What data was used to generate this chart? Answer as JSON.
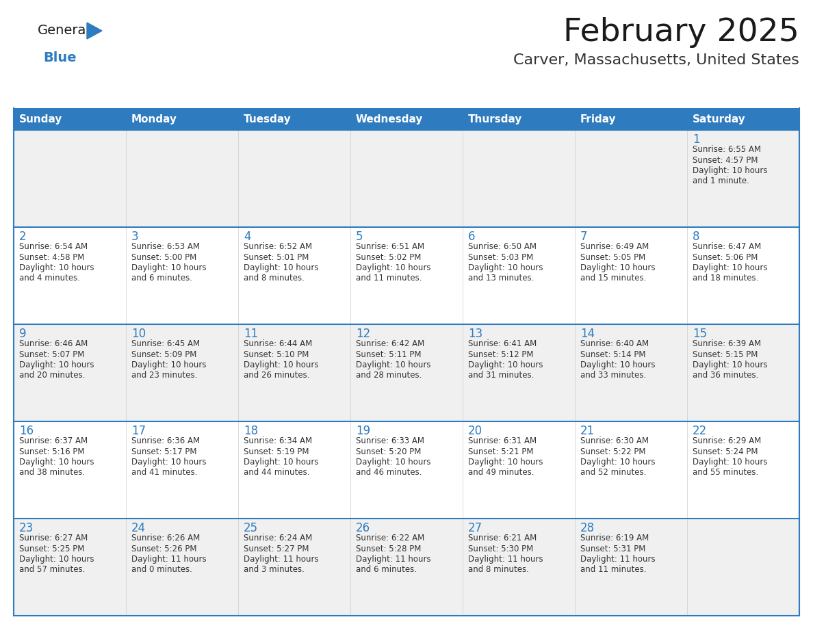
{
  "title": "February 2025",
  "subtitle": "Carver, Massachusetts, United States",
  "days_of_week": [
    "Sunday",
    "Monday",
    "Tuesday",
    "Wednesday",
    "Thursday",
    "Friday",
    "Saturday"
  ],
  "header_bg": "#2E7BBF",
  "header_text_color": "#FFFFFF",
  "cell_bg_odd": "#F0F0F0",
  "cell_bg_even": "#FFFFFF",
  "border_color": "#2E7BBF",
  "row_sep_color": "#2E7BBF",
  "day_num_color": "#2E7BBF",
  "cell_text_color": "#333333",
  "title_color": "#1a1a1a",
  "subtitle_color": "#333333",
  "logo_general_color": "#1a1a1a",
  "logo_blue_color": "#2E7BBF",
  "calendar_data": [
    [
      null,
      null,
      null,
      null,
      null,
      null,
      {
        "day": 1,
        "sunrise": "6:55 AM",
        "sunset": "4:57 PM",
        "daylight": "10 hours and 1 minute."
      }
    ],
    [
      {
        "day": 2,
        "sunrise": "6:54 AM",
        "sunset": "4:58 PM",
        "daylight": "10 hours and 4 minutes."
      },
      {
        "day": 3,
        "sunrise": "6:53 AM",
        "sunset": "5:00 PM",
        "daylight": "10 hours and 6 minutes."
      },
      {
        "day": 4,
        "sunrise": "6:52 AM",
        "sunset": "5:01 PM",
        "daylight": "10 hours and 8 minutes."
      },
      {
        "day": 5,
        "sunrise": "6:51 AM",
        "sunset": "5:02 PM",
        "daylight": "10 hours and 11 minutes."
      },
      {
        "day": 6,
        "sunrise": "6:50 AM",
        "sunset": "5:03 PM",
        "daylight": "10 hours and 13 minutes."
      },
      {
        "day": 7,
        "sunrise": "6:49 AM",
        "sunset": "5:05 PM",
        "daylight": "10 hours and 15 minutes."
      },
      {
        "day": 8,
        "sunrise": "6:47 AM",
        "sunset": "5:06 PM",
        "daylight": "10 hours and 18 minutes."
      }
    ],
    [
      {
        "day": 9,
        "sunrise": "6:46 AM",
        "sunset": "5:07 PM",
        "daylight": "10 hours and 20 minutes."
      },
      {
        "day": 10,
        "sunrise": "6:45 AM",
        "sunset": "5:09 PM",
        "daylight": "10 hours and 23 minutes."
      },
      {
        "day": 11,
        "sunrise": "6:44 AM",
        "sunset": "5:10 PM",
        "daylight": "10 hours and 26 minutes."
      },
      {
        "day": 12,
        "sunrise": "6:42 AM",
        "sunset": "5:11 PM",
        "daylight": "10 hours and 28 minutes."
      },
      {
        "day": 13,
        "sunrise": "6:41 AM",
        "sunset": "5:12 PM",
        "daylight": "10 hours and 31 minutes."
      },
      {
        "day": 14,
        "sunrise": "6:40 AM",
        "sunset": "5:14 PM",
        "daylight": "10 hours and 33 minutes."
      },
      {
        "day": 15,
        "sunrise": "6:39 AM",
        "sunset": "5:15 PM",
        "daylight": "10 hours and 36 minutes."
      }
    ],
    [
      {
        "day": 16,
        "sunrise": "6:37 AM",
        "sunset": "5:16 PM",
        "daylight": "10 hours and 38 minutes."
      },
      {
        "day": 17,
        "sunrise": "6:36 AM",
        "sunset": "5:17 PM",
        "daylight": "10 hours and 41 minutes."
      },
      {
        "day": 18,
        "sunrise": "6:34 AM",
        "sunset": "5:19 PM",
        "daylight": "10 hours and 44 minutes."
      },
      {
        "day": 19,
        "sunrise": "6:33 AM",
        "sunset": "5:20 PM",
        "daylight": "10 hours and 46 minutes."
      },
      {
        "day": 20,
        "sunrise": "6:31 AM",
        "sunset": "5:21 PM",
        "daylight": "10 hours and 49 minutes."
      },
      {
        "day": 21,
        "sunrise": "6:30 AM",
        "sunset": "5:22 PM",
        "daylight": "10 hours and 52 minutes."
      },
      {
        "day": 22,
        "sunrise": "6:29 AM",
        "sunset": "5:24 PM",
        "daylight": "10 hours and 55 minutes."
      }
    ],
    [
      {
        "day": 23,
        "sunrise": "6:27 AM",
        "sunset": "5:25 PM",
        "daylight": "10 hours and 57 minutes."
      },
      {
        "day": 24,
        "sunrise": "6:26 AM",
        "sunset": "5:26 PM",
        "daylight": "11 hours and 0 minutes."
      },
      {
        "day": 25,
        "sunrise": "6:24 AM",
        "sunset": "5:27 PM",
        "daylight": "11 hours and 3 minutes."
      },
      {
        "day": 26,
        "sunrise": "6:22 AM",
        "sunset": "5:28 PM",
        "daylight": "11 hours and 6 minutes."
      },
      {
        "day": 27,
        "sunrise": "6:21 AM",
        "sunset": "5:30 PM",
        "daylight": "11 hours and 8 minutes."
      },
      {
        "day": 28,
        "sunrise": "6:19 AM",
        "sunset": "5:31 PM",
        "daylight": "11 hours and 11 minutes."
      },
      null
    ]
  ]
}
